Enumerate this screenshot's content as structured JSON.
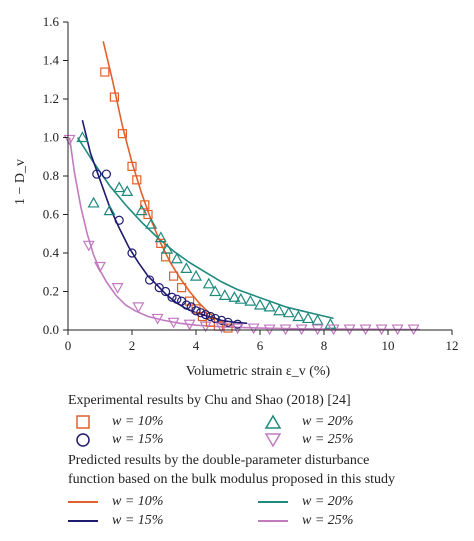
{
  "chart_data": {
    "type": "scatter",
    "title": "",
    "xlabel": "Volumetric strain ε_v (%)",
    "ylabel": "1 − D_v",
    "xlim": [
      0,
      12
    ],
    "ylim": [
      0,
      1.6
    ],
    "x_ticks": [
      "0",
      "2",
      "4",
      "6",
      "8",
      "10",
      "12"
    ],
    "y_ticks": [
      "0.0",
      "0.2",
      "0.4",
      "0.6",
      "0.8",
      "1.0",
      "1.2",
      "1.4",
      "1.6"
    ],
    "grid": false,
    "experimental": {
      "heading": "Experimental results by Chu and Shao (2018) [24]",
      "series": [
        {
          "name": "w = 10%",
          "marker": "square",
          "color": "#e0612b",
          "points": [
            [
              1.15,
              1.34
            ],
            [
              1.45,
              1.21
            ],
            [
              1.7,
              1.02
            ],
            [
              2.0,
              0.85
            ],
            [
              2.15,
              0.78
            ],
            [
              2.4,
              0.65
            ],
            [
              2.5,
              0.6
            ],
            [
              2.9,
              0.45
            ],
            [
              3.05,
              0.38
            ],
            [
              3.3,
              0.28
            ],
            [
              3.55,
              0.22
            ],
            [
              3.8,
              0.15
            ],
            [
              4.0,
              0.11
            ],
            [
              4.2,
              0.07
            ],
            [
              4.45,
              0.04
            ],
            [
              4.7,
              0.02
            ],
            [
              5.0,
              0.01
            ]
          ]
        },
        {
          "name": "w = 20%",
          "marker": "triangle-up",
          "color": "#1e8a7e",
          "points": [
            [
              0.45,
              1.0
            ],
            [
              0.8,
              0.66
            ],
            [
              1.3,
              0.62
            ],
            [
              1.6,
              0.74
            ],
            [
              1.85,
              0.72
            ],
            [
              2.3,
              0.62
            ],
            [
              2.6,
              0.55
            ],
            [
              2.9,
              0.48
            ],
            [
              3.1,
              0.42
            ],
            [
              3.4,
              0.37
            ],
            [
              3.7,
              0.32
            ],
            [
              4.0,
              0.28
            ],
            [
              4.4,
              0.24
            ],
            [
              4.6,
              0.2
            ],
            [
              4.9,
              0.18
            ],
            [
              5.2,
              0.17
            ],
            [
              5.4,
              0.16
            ],
            [
              5.7,
              0.15
            ],
            [
              6.0,
              0.13
            ],
            [
              6.3,
              0.12
            ],
            [
              6.6,
              0.1
            ],
            [
              6.9,
              0.09
            ],
            [
              7.2,
              0.07
            ],
            [
              7.5,
              0.06
            ],
            [
              7.8,
              0.05
            ],
            [
              8.2,
              0.03
            ]
          ]
        },
        {
          "name": "w = 15%",
          "marker": "circle",
          "color": "#1f1b6e",
          "points": [
            [
              0.9,
              0.81
            ],
            [
              1.2,
              0.81
            ],
            [
              1.6,
              0.57
            ],
            [
              2.0,
              0.4
            ],
            [
              2.55,
              0.26
            ],
            [
              2.85,
              0.22
            ],
            [
              3.05,
              0.2
            ],
            [
              3.25,
              0.17
            ],
            [
              3.4,
              0.16
            ],
            [
              3.55,
              0.15
            ],
            [
              3.7,
              0.13
            ],
            [
              3.85,
              0.12
            ],
            [
              4.0,
              0.1
            ],
            [
              4.15,
              0.09
            ],
            [
              4.3,
              0.08
            ],
            [
              4.45,
              0.07
            ],
            [
              4.6,
              0.06
            ],
            [
              4.8,
              0.05
            ],
            [
              5.0,
              0.04
            ],
            [
              5.3,
              0.03
            ]
          ]
        },
        {
          "name": "w = 25%",
          "marker": "triangle-down",
          "color": "#c27bc0",
          "points": [
            [
              0.05,
              0.99
            ],
            [
              0.65,
              0.44
            ],
            [
              1.0,
              0.33
            ],
            [
              1.55,
              0.22
            ],
            [
              2.2,
              0.12
            ],
            [
              2.8,
              0.06
            ],
            [
              3.3,
              0.04
            ],
            [
              3.8,
              0.03
            ],
            [
              4.3,
              0.02
            ],
            [
              4.8,
              0.015
            ],
            [
              5.3,
              0.01
            ],
            [
              5.8,
              0.01
            ],
            [
              6.3,
              0.005
            ],
            [
              6.8,
              0.005
            ],
            [
              7.3,
              0.005
            ],
            [
              7.8,
              0.005
            ],
            [
              8.3,
              0.005
            ],
            [
              8.8,
              0.005
            ],
            [
              9.3,
              0.005
            ],
            [
              9.8,
              0.005
            ],
            [
              10.3,
              0.005
            ],
            [
              10.8,
              0.005
            ]
          ]
        }
      ]
    },
    "predicted": {
      "heading": "Predicted results by the double-parameter disturbance function based on the bulk modulus proposed in this study",
      "heading_lines": [
        "Predicted results by the double-parameter disturbance",
        "function based on the bulk modulus proposed in this study"
      ],
      "series": [
        {
          "name": "w = 10%",
          "color": "#e0612b",
          "curve": [
            [
              1.1,
              1.5
            ],
            [
              1.4,
              1.29
            ],
            [
              1.7,
              1.06
            ],
            [
              2.0,
              0.87
            ],
            [
              2.3,
              0.71
            ],
            [
              2.6,
              0.57
            ],
            [
              2.9,
              0.45
            ],
            [
              3.2,
              0.35
            ],
            [
              3.5,
              0.27
            ],
            [
              3.8,
              0.2
            ],
            [
              4.1,
              0.14
            ],
            [
              4.4,
              0.09
            ],
            [
              4.7,
              0.05
            ],
            [
              5.0,
              0.025
            ]
          ]
        },
        {
          "name": "w = 20%",
          "color": "#1e8a7e",
          "curve": [
            [
              0.3,
              1.0
            ],
            [
              0.8,
              0.87
            ],
            [
              1.3,
              0.75
            ],
            [
              1.8,
              0.65
            ],
            [
              2.3,
              0.56
            ],
            [
              2.8,
              0.48
            ],
            [
              3.3,
              0.41
            ],
            [
              3.8,
              0.35
            ],
            [
              4.3,
              0.3
            ],
            [
              4.8,
              0.25
            ],
            [
              5.3,
              0.21
            ],
            [
              5.8,
              0.18
            ],
            [
              6.3,
              0.15
            ],
            [
              6.8,
              0.12
            ],
            [
              7.3,
              0.1
            ],
            [
              7.8,
              0.08
            ],
            [
              8.3,
              0.06
            ]
          ]
        },
        {
          "name": "w = 15%",
          "color": "#1f1b6e",
          "curve": [
            [
              0.45,
              1.09
            ],
            [
              0.7,
              0.92
            ],
            [
              1.0,
              0.78
            ],
            [
              1.3,
              0.64
            ],
            [
              1.6,
              0.53
            ],
            [
              1.9,
              0.43
            ],
            [
              2.2,
              0.35
            ],
            [
              2.5,
              0.28
            ],
            [
              2.8,
              0.23
            ],
            [
              3.1,
              0.18
            ],
            [
              3.4,
              0.14
            ],
            [
              3.7,
              0.11
            ],
            [
              4.0,
              0.09
            ],
            [
              4.4,
              0.07
            ],
            [
              4.8,
              0.05
            ],
            [
              5.2,
              0.04
            ],
            [
              5.6,
              0.035
            ]
          ]
        },
        {
          "name": "w = 25%",
          "color": "#c27bc0",
          "curve": [
            [
              0.05,
              1.0
            ],
            [
              0.2,
              0.82
            ],
            [
              0.4,
              0.64
            ],
            [
              0.6,
              0.5
            ],
            [
              0.8,
              0.39
            ],
            [
              1.0,
              0.31
            ],
            [
              1.2,
              0.25
            ],
            [
              1.5,
              0.18
            ],
            [
              1.8,
              0.13
            ],
            [
              2.1,
              0.1
            ],
            [
              2.5,
              0.07
            ],
            [
              3.0,
              0.05
            ],
            [
              3.5,
              0.035
            ],
            [
              4.0,
              0.025
            ],
            [
              5.0,
              0.015
            ],
            [
              6.0,
              0.01
            ],
            [
              7.0,
              0.007
            ],
            [
              8.0,
              0.005
            ],
            [
              9.0,
              0.004
            ],
            [
              10.0,
              0.003
            ],
            [
              11.0,
              0.002
            ]
          ]
        }
      ]
    }
  }
}
